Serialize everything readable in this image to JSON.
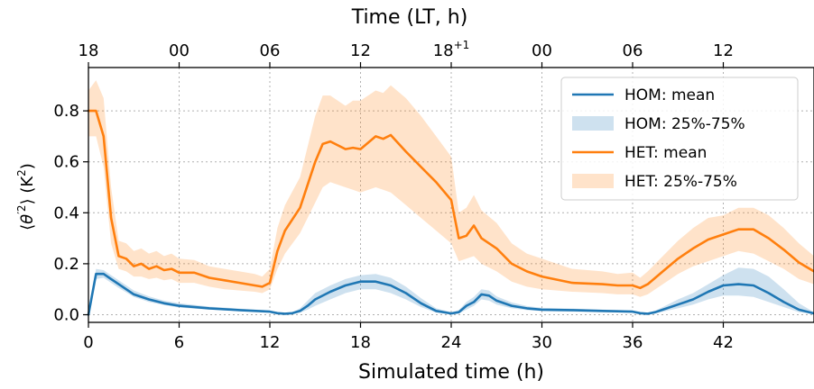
{
  "chart_data": {
    "type": "line",
    "xlabel": "Simulated time (h)",
    "ylabel_parts": {
      "open": "⟨",
      "theta": "θ",
      "prime": "′",
      "sup2": "2",
      "close": "⟩ (K",
      "unit_sup": "2",
      "end": ")"
    },
    "top_xlabel": "Time (LT, h)",
    "xlim": [
      0,
      48
    ],
    "ylim": [
      -0.03,
      0.97
    ],
    "x_ticks": [
      0,
      6,
      12,
      18,
      24,
      30,
      36,
      42
    ],
    "y_ticks": [
      0.0,
      0.2,
      0.4,
      0.6,
      0.8
    ],
    "y_tick_labels": [
      "0.0",
      "0.2",
      "0.4",
      "0.6",
      "0.8"
    ],
    "top_ticks": [
      {
        "x": 0,
        "label": "18",
        "sup": ""
      },
      {
        "x": 6,
        "label": "00",
        "sup": ""
      },
      {
        "x": 12,
        "label": "06",
        "sup": ""
      },
      {
        "x": 18,
        "label": "12",
        "sup": ""
      },
      {
        "x": 24,
        "label": "18",
        "sup": "+1"
      },
      {
        "x": 30,
        "label": "00",
        "sup": ""
      },
      {
        "x": 36,
        "label": "06",
        "sup": ""
      },
      {
        "x": 42,
        "label": "12",
        "sup": ""
      }
    ],
    "grid": true,
    "legend_position": "top-right",
    "legend": [
      {
        "label": "HOM: mean",
        "kind": "line",
        "color": "#1f77b4"
      },
      {
        "label": "HOM: 25%-75%",
        "kind": "band",
        "color": "#1f77b4"
      },
      {
        "label": "HET: mean",
        "kind": "line",
        "color": "#ff7f0e"
      },
      {
        "label": "HET: 25%-75%",
        "kind": "band",
        "color": "#ff7f0e"
      }
    ],
    "colors": {
      "hom": "#1f77b4",
      "het": "#ff7f0e",
      "band_opacity": 0.22
    },
    "series": [
      {
        "name": "HOM: mean",
        "x": [
          0,
          0.5,
          1,
          1.5,
          2,
          3,
          4,
          5,
          6,
          8,
          10,
          12,
          12.5,
          13,
          13.5,
          14,
          14.5,
          15,
          16,
          17,
          18,
          19,
          20,
          21,
          22,
          23,
          24,
          24.5,
          25,
          25.5,
          26,
          26.5,
          27,
          28,
          29,
          30,
          32,
          34,
          36,
          36.5,
          37,
          37.5,
          38,
          39,
          40,
          41,
          42,
          43,
          44,
          45,
          46,
          47,
          48
        ],
        "y": [
          0.0,
          0.16,
          0.16,
          0.14,
          0.12,
          0.08,
          0.06,
          0.045,
          0.035,
          0.025,
          0.018,
          0.012,
          0.006,
          0.004,
          0.006,
          0.015,
          0.035,
          0.06,
          0.09,
          0.115,
          0.13,
          0.13,
          0.115,
          0.085,
          0.045,
          0.015,
          0.005,
          0.01,
          0.035,
          0.05,
          0.08,
          0.075,
          0.055,
          0.035,
          0.025,
          0.02,
          0.018,
          0.015,
          0.012,
          0.006,
          0.004,
          0.01,
          0.02,
          0.04,
          0.06,
          0.09,
          0.115,
          0.12,
          0.115,
          0.085,
          0.05,
          0.02,
          0.005
        ]
      },
      {
        "name": "HOM: 25%-75%",
        "x": [
          0,
          0.5,
          1,
          1.5,
          2,
          3,
          4,
          5,
          6,
          8,
          10,
          12,
          12.5,
          13,
          13.5,
          14,
          14.5,
          15,
          16,
          17,
          18,
          19,
          20,
          21,
          22,
          23,
          24,
          24.5,
          25,
          25.5,
          26,
          26.5,
          27,
          28,
          29,
          30,
          32,
          34,
          36,
          36.5,
          37,
          37.5,
          38,
          39,
          40,
          41,
          42,
          43,
          44,
          45,
          46,
          47,
          48
        ],
        "low": [
          0.0,
          0.14,
          0.145,
          0.125,
          0.105,
          0.07,
          0.05,
          0.038,
          0.028,
          0.02,
          0.014,
          0.009,
          0.004,
          0.002,
          0.003,
          0.008,
          0.02,
          0.035,
          0.06,
          0.085,
          0.1,
          0.1,
          0.085,
          0.06,
          0.03,
          0.008,
          0.002,
          0.005,
          0.02,
          0.035,
          0.06,
          0.055,
          0.04,
          0.025,
          0.018,
          0.014,
          0.012,
          0.01,
          0.008,
          0.004,
          0.002,
          0.005,
          0.012,
          0.025,
          0.04,
          0.06,
          0.075,
          0.075,
          0.07,
          0.05,
          0.03,
          0.01,
          0.002
        ],
        "high": [
          0.0,
          0.18,
          0.175,
          0.155,
          0.135,
          0.095,
          0.072,
          0.055,
          0.045,
          0.032,
          0.024,
          0.017,
          0.009,
          0.006,
          0.01,
          0.025,
          0.055,
          0.085,
          0.115,
          0.14,
          0.155,
          0.16,
          0.145,
          0.11,
          0.065,
          0.025,
          0.01,
          0.018,
          0.05,
          0.07,
          0.1,
          0.095,
          0.072,
          0.048,
          0.034,
          0.027,
          0.024,
          0.02,
          0.017,
          0.009,
          0.006,
          0.016,
          0.03,
          0.06,
          0.085,
          0.12,
          0.155,
          0.185,
          0.18,
          0.15,
          0.1,
          0.045,
          0.01
        ]
      },
      {
        "name": "HET: mean",
        "x": [
          0,
          0.5,
          1,
          1.5,
          2,
          2.5,
          3,
          3.5,
          4,
          4.5,
          5,
          5.5,
          6,
          7,
          8,
          9,
          10,
          11,
          11.5,
          12,
          12.5,
          13,
          14,
          15,
          15.5,
          16,
          17,
          17.5,
          18,
          19,
          19.5,
          20,
          21,
          22,
          23,
          24,
          24.5,
          25,
          25.5,
          26,
          27,
          28,
          29,
          30,
          32,
          34,
          35,
          36,
          36.5,
          37,
          38,
          39,
          40,
          41,
          42,
          43,
          44,
          45,
          46,
          47,
          48
        ],
        "y": [
          0.8,
          0.8,
          0.7,
          0.38,
          0.23,
          0.22,
          0.19,
          0.2,
          0.18,
          0.19,
          0.175,
          0.18,
          0.165,
          0.165,
          0.145,
          0.135,
          0.125,
          0.115,
          0.11,
          0.125,
          0.25,
          0.33,
          0.42,
          0.6,
          0.67,
          0.68,
          0.65,
          0.655,
          0.65,
          0.7,
          0.69,
          0.705,
          0.64,
          0.58,
          0.52,
          0.45,
          0.3,
          0.31,
          0.35,
          0.3,
          0.26,
          0.2,
          0.17,
          0.15,
          0.125,
          0.12,
          0.115,
          0.115,
          0.105,
          0.12,
          0.17,
          0.22,
          0.26,
          0.295,
          0.315,
          0.335,
          0.335,
          0.3,
          0.255,
          0.205,
          0.17
        ]
      },
      {
        "name": "HET: 25%-75%",
        "x": [
          0,
          0.5,
          1,
          1.5,
          2,
          2.5,
          3,
          3.5,
          4,
          4.5,
          5,
          5.5,
          6,
          7,
          8,
          9,
          10,
          11,
          11.5,
          12,
          12.5,
          13,
          14,
          15,
          15.5,
          16,
          17,
          17.5,
          18,
          19,
          19.5,
          20,
          21,
          22,
          23,
          24,
          24.5,
          25,
          25.5,
          26,
          27,
          28,
          29,
          30,
          32,
          34,
          35,
          36,
          36.5,
          37,
          38,
          39,
          40,
          41,
          42,
          43,
          44,
          45,
          46,
          47,
          48
        ],
        "low": [
          0.7,
          0.7,
          0.58,
          0.28,
          0.18,
          0.17,
          0.15,
          0.15,
          0.14,
          0.145,
          0.135,
          0.14,
          0.125,
          0.125,
          0.11,
          0.1,
          0.095,
          0.09,
          0.085,
          0.1,
          0.18,
          0.24,
          0.32,
          0.44,
          0.5,
          0.52,
          0.5,
          0.49,
          0.48,
          0.5,
          0.49,
          0.48,
          0.43,
          0.38,
          0.33,
          0.28,
          0.21,
          0.22,
          0.23,
          0.2,
          0.17,
          0.13,
          0.11,
          0.1,
          0.09,
          0.085,
          0.08,
          0.08,
          0.07,
          0.08,
          0.12,
          0.16,
          0.19,
          0.21,
          0.23,
          0.25,
          0.24,
          0.21,
          0.18,
          0.14,
          0.12
        ],
        "high": [
          0.88,
          0.92,
          0.85,
          0.5,
          0.29,
          0.28,
          0.25,
          0.26,
          0.24,
          0.25,
          0.23,
          0.24,
          0.22,
          0.215,
          0.19,
          0.18,
          0.17,
          0.16,
          0.15,
          0.18,
          0.34,
          0.43,
          0.54,
          0.78,
          0.86,
          0.86,
          0.82,
          0.84,
          0.84,
          0.88,
          0.87,
          0.9,
          0.85,
          0.78,
          0.7,
          0.62,
          0.4,
          0.42,
          0.47,
          0.41,
          0.36,
          0.28,
          0.24,
          0.22,
          0.18,
          0.17,
          0.16,
          0.165,
          0.145,
          0.17,
          0.23,
          0.29,
          0.34,
          0.38,
          0.39,
          0.42,
          0.42,
          0.39,
          0.34,
          0.28,
          0.23
        ]
      }
    ]
  }
}
